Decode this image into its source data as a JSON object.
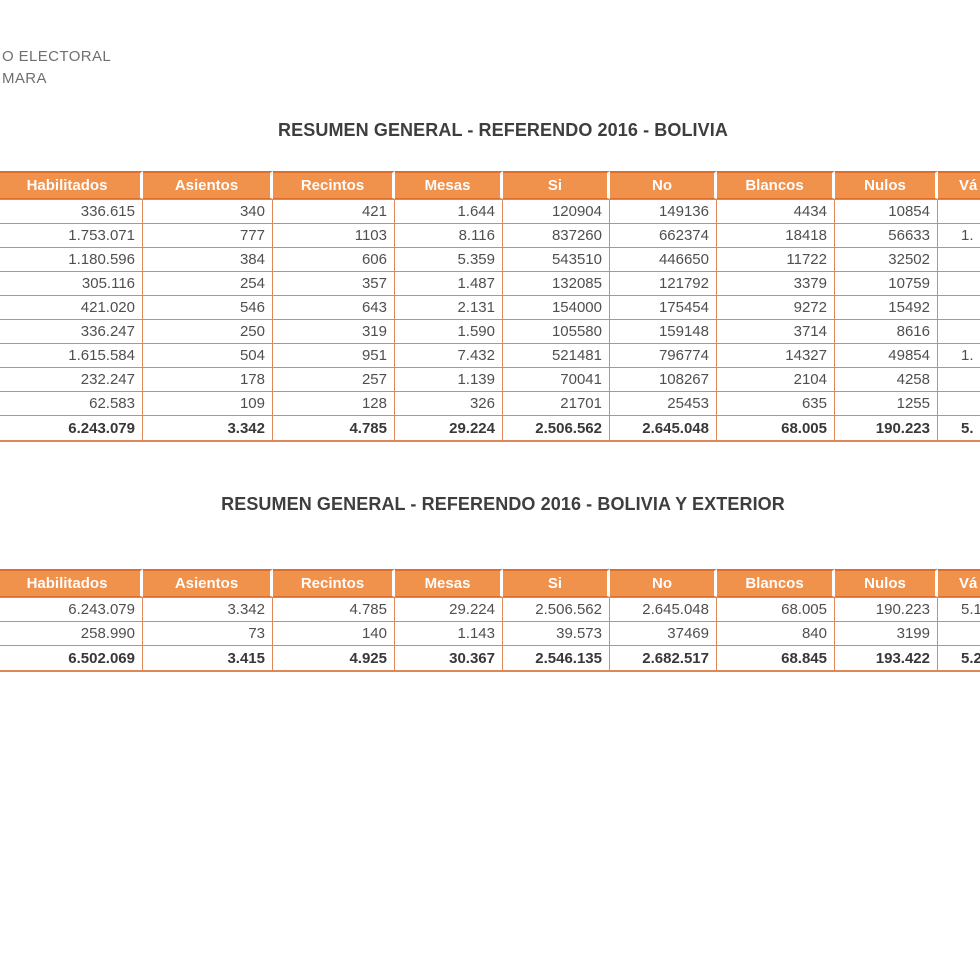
{
  "colors": {
    "page_bg": "#FFFFFF",
    "header_bg": "#F0914C",
    "header_text": "#FDFDFD",
    "header_top_border": "#DE6E2E",
    "grid": "#DF8757",
    "cell_text": "#4F4F4F",
    "total_text": "#383838",
    "title_text": "#3E3E3E",
    "letterhead_text": "#6F6F6F"
  },
  "letterhead": {
    "line1": "O ELECTORAL",
    "line2": "MARA"
  },
  "table1": {
    "title": "RESUMEN GENERAL - REFERENDO 2016 - BOLIVIA",
    "columns": [
      "Habilitados",
      "Asientos",
      "Recintos",
      "Mesas",
      "Si",
      "No",
      "Blancos",
      "Nulos",
      "Vá"
    ],
    "rows": [
      [
        "336.615",
        "340",
        "421",
        "1.644",
        "120904",
        "149136",
        "4434",
        "10854",
        ""
      ],
      [
        "1.753.071",
        "777",
        "1103",
        "8.116",
        "837260",
        "662374",
        "18418",
        "56633",
        "1."
      ],
      [
        "1.180.596",
        "384",
        "606",
        "5.359",
        "543510",
        "446650",
        "11722",
        "32502",
        ""
      ],
      [
        "305.116",
        "254",
        "357",
        "1.487",
        "132085",
        "121792",
        "3379",
        "10759",
        ""
      ],
      [
        "421.020",
        "546",
        "643",
        "2.131",
        "154000",
        "175454",
        "9272",
        "15492",
        ""
      ],
      [
        "336.247",
        "250",
        "319",
        "1.590",
        "105580",
        "159148",
        "3714",
        "8616",
        ""
      ],
      [
        "1.615.584",
        "504",
        "951",
        "7.432",
        "521481",
        "796774",
        "14327",
        "49854",
        "1."
      ],
      [
        "232.247",
        "178",
        "257",
        "1.139",
        "70041",
        "108267",
        "2104",
        "4258",
        ""
      ],
      [
        "62.583",
        "109",
        "128",
        "326",
        "21701",
        "25453",
        "635",
        "1255",
        ""
      ]
    ],
    "total_row": [
      "6.243.079",
      "3.342",
      "4.785",
      "29.224",
      "2.506.562",
      "2.645.048",
      "68.005",
      "190.223",
      "5."
    ]
  },
  "table2": {
    "title": "RESUMEN GENERAL - REFERENDO 2016 - BOLIVIA Y EXTERIOR",
    "columns": [
      "Habilitados",
      "Asientos",
      "Recintos",
      "Mesas",
      "Si",
      "No",
      "Blancos",
      "Nulos",
      "Vá"
    ],
    "rows": [
      [
        "6.243.079",
        "3.342",
        "4.785",
        "29.224",
        "2.506.562",
        "2.645.048",
        "68.005",
        "190.223",
        "5.1"
      ],
      [
        "258.990",
        "73",
        "140",
        "1.143",
        "39.573",
        "37469",
        "840",
        "3199",
        ""
      ]
    ],
    "total_row": [
      "6.502.069",
      "3.415",
      "4.925",
      "30.367",
      "2.546.135",
      "2.682.517",
      "68.845",
      "193.422",
      "5.2"
    ]
  }
}
